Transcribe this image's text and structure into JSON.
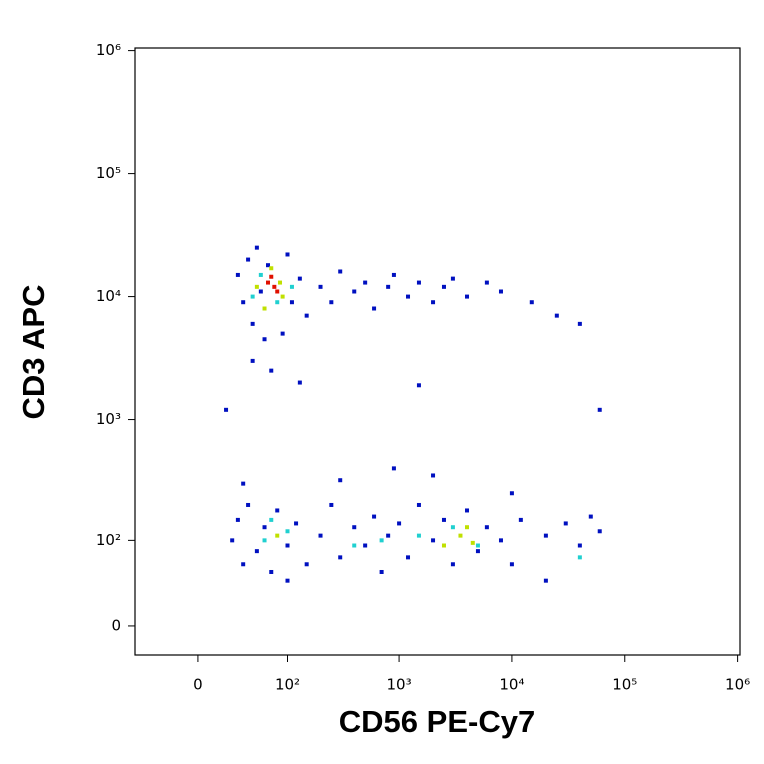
{
  "chart_data": {
    "type": "scatter",
    "xlabel": "CD56 PE-Cy7",
    "ylabel": "CD3 APC",
    "xscale": "asinh",
    "yscale": "asinh",
    "xlim": [
      -55,
      1050000
    ],
    "ylim": [
      -24,
      1050000
    ],
    "xticks": [
      0,
      {
        "value": 100,
        "label": "10²"
      },
      {
        "value": 1000,
        "label": "10³"
      },
      {
        "value": 10000,
        "label": "10⁴"
      },
      {
        "value": 100000,
        "label": "10⁵"
      },
      {
        "value": 1000000,
        "label": "10⁶"
      }
    ],
    "yticks": [
      0,
      {
        "value": 100,
        "label": "10²"
      },
      {
        "value": 1000,
        "label": "10³"
      },
      {
        "value": 10000,
        "label": "10⁴"
      },
      {
        "value": 100000,
        "label": "10⁵"
      },
      {
        "value": 1000000,
        "label": "10⁶"
      }
    ],
    "series": [
      {
        "color": "#0010c0",
        "x": [
          30,
          35,
          40,
          45,
          50,
          55,
          60,
          65,
          90,
          100,
          110,
          130,
          150,
          200,
          250,
          300,
          400,
          500,
          600,
          800,
          900,
          1200,
          1500,
          2000,
          2500,
          3000,
          4000,
          6000,
          8000,
          15000,
          25000,
          40000,
          60000,
          1500,
          20,
          45,
          70,
          130,
          25,
          30,
          35,
          40,
          50,
          60,
          70,
          80,
          100,
          120,
          150,
          200,
          250,
          300,
          400,
          500,
          600,
          700,
          800,
          1000,
          1200,
          1500,
          2000,
          2500,
          3000,
          4000,
          5000,
          6000,
          8000,
          10000,
          12000,
          20000,
          30000,
          40000,
          60000,
          50000,
          35,
          300,
          2000,
          20000,
          100,
          900,
          10000
        ],
        "values": [
          15000,
          9000,
          20000,
          6000,
          25000,
          11000,
          4500,
          18000,
          5000,
          22000,
          9000,
          14000,
          7000,
          12000,
          9000,
          16000,
          11000,
          13000,
          8000,
          12000,
          15000,
          10000,
          13000,
          9000,
          12000,
          14000,
          10000,
          13000,
          11000,
          9000,
          7000,
          6000,
          1200,
          1900,
          1200,
          3000,
          2500,
          2000,
          100,
          150,
          60,
          200,
          80,
          130,
          50,
          180,
          90,
          140,
          60,
          110,
          200,
          70,
          130,
          90,
          160,
          50,
          110,
          140,
          70,
          200,
          100,
          150,
          60,
          180,
          80,
          130,
          100,
          60,
          150,
          110,
          140,
          90,
          120,
          160,
          300,
          320,
          350,
          40,
          40,
          400,
          250
        ]
      },
      {
        "color": "#20d0d0",
        "x": [
          55,
          80,
          110,
          45,
          60,
          100,
          400,
          1500,
          3000,
          5000,
          70,
          40000,
          700
        ],
        "values": [
          15000,
          9000,
          12000,
          10000,
          100,
          120,
          90,
          110,
          130,
          90,
          150,
          70,
          100
        ]
      },
      {
        "color": "#c0e000",
        "x": [
          50,
          70,
          90,
          60,
          85,
          3500,
          4500,
          4000,
          80,
          2500
        ],
        "values": [
          12000,
          17000,
          10000,
          8000,
          13000,
          110,
          95,
          130,
          110,
          90
        ]
      },
      {
        "color": "#e01000",
        "x": [
          65,
          75,
          70,
          80
        ],
        "values": [
          13000,
          12000,
          14500,
          11000
        ]
      }
    ]
  }
}
